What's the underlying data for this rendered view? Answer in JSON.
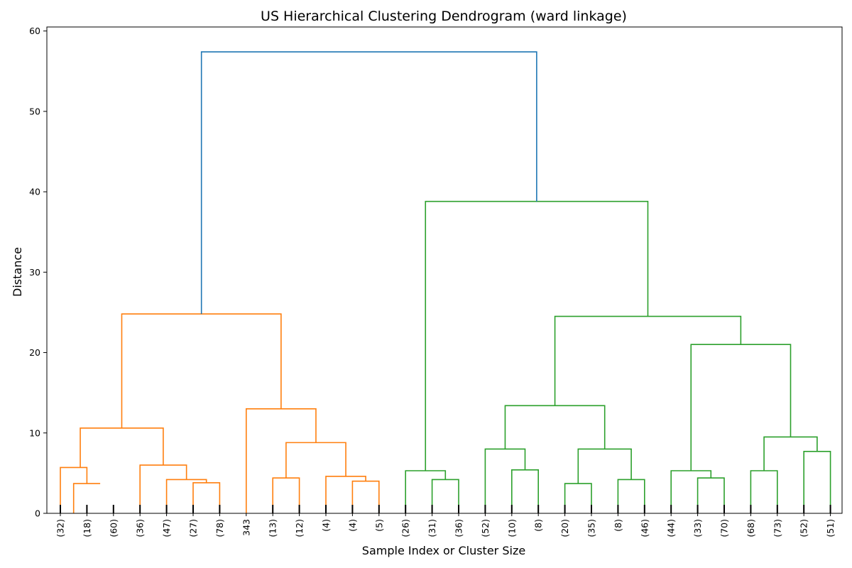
{
  "chart_data": {
    "type": "dendrogram",
    "title": "US Hierarchical Clustering Dendrogram (ward linkage)",
    "xlabel": "Sample Index or Cluster Size",
    "ylabel": "Distance",
    "ylim": [
      0,
      60.5
    ],
    "yticks": [
      0,
      10,
      20,
      30,
      40,
      50,
      60
    ],
    "grid": false,
    "colors": {
      "root": "#1f77b4",
      "cluster_a": "#ff7f0e",
      "cluster_b": "#2ca02c",
      "axis": "#000000"
    },
    "leaves": [
      "(32)",
      "(18)",
      "(60)",
      "(36)",
      "(47)",
      "(27)",
      "(78)",
      "343",
      "(13)",
      "(12)",
      "(4)",
      "(4)",
      "(5)",
      "(26)",
      "(31)",
      "(36)",
      "(52)",
      "(10)",
      "(8)",
      "(20)",
      "(35)",
      "(8)",
      "(46)",
      "(44)",
      "(33)",
      "(70)",
      "(68)",
      "(73)",
      "(52)",
      "(51)"
    ],
    "links": [
      {
        "left": [
          0.5,
          0
        ],
        "right": [
          1.5,
          3.7
        ],
        "height": 3.7,
        "color": "cluster_a"
      },
      {
        "left": [
          0,
          0
        ],
        "right": [
          1,
          3.7
        ],
        "height": 5.7,
        "color": "cluster_a"
      },
      {
        "left": [
          5,
          0
        ],
        "right": [
          6,
          0
        ],
        "height": 3.8,
        "color": "cluster_a"
      },
      {
        "left": [
          4,
          0
        ],
        "right": [
          5.5,
          3.8
        ],
        "height": 4.2,
        "color": "cluster_a"
      },
      {
        "left": [
          3,
          0
        ],
        "right": [
          4.75,
          4.2
        ],
        "height": 6.0,
        "color": "cluster_a"
      },
      {
        "left": [
          0.75,
          5.7
        ],
        "right": [
          3.875,
          6.0
        ],
        "height": 10.6,
        "color": "cluster_a"
      },
      {
        "left": [
          8,
          0
        ],
        "right": [
          9,
          0
        ],
        "height": 4.4,
        "color": "cluster_a"
      },
      {
        "left": [
          11,
          0
        ],
        "right": [
          12,
          0
        ],
        "height": 4.0,
        "color": "cluster_a"
      },
      {
        "left": [
          10,
          0
        ],
        "right": [
          11.5,
          4.0
        ],
        "height": 4.6,
        "color": "cluster_a"
      },
      {
        "left": [
          8.5,
          4.4
        ],
        "right": [
          10.75,
          4.6
        ],
        "height": 8.8,
        "color": "cluster_a"
      },
      {
        "left": [
          7,
          0
        ],
        "right": [
          9.625,
          8.8
        ],
        "height": 13.0,
        "color": "cluster_a"
      },
      {
        "left": [
          2.3125,
          10.6
        ],
        "right": [
          8.3125,
          13.0
        ],
        "height": 24.8,
        "color": "cluster_a"
      },
      {
        "left": [
          14,
          0
        ],
        "right": [
          15,
          0
        ],
        "height": 4.2,
        "color": "cluster_b"
      },
      {
        "left": [
          13,
          0
        ],
        "right": [
          14.5,
          4.2
        ],
        "height": 5.3,
        "color": "cluster_b"
      },
      {
        "left": [
          17,
          0
        ],
        "right": [
          18,
          0
        ],
        "height": 5.4,
        "color": "cluster_b"
      },
      {
        "left": [
          16,
          0
        ],
        "right": [
          17.5,
          5.4
        ],
        "height": 8.0,
        "color": "cluster_b"
      },
      {
        "left": [
          19,
          0
        ],
        "right": [
          20,
          0
        ],
        "height": 3.7,
        "color": "cluster_b"
      },
      {
        "left": [
          21,
          0
        ],
        "right": [
          22,
          0
        ],
        "height": 4.2,
        "color": "cluster_b"
      },
      {
        "left": [
          19.5,
          3.7
        ],
        "right": [
          21.5,
          4.2
        ],
        "height": 8.0,
        "color": "cluster_b"
      },
      {
        "left": [
          16.75,
          8.0
        ],
        "right": [
          20.5,
          8.0
        ],
        "height": 13.4,
        "color": "cluster_b"
      },
      {
        "left": [
          24,
          0
        ],
        "right": [
          25,
          0
        ],
        "height": 4.4,
        "color": "cluster_b"
      },
      {
        "left": [
          23,
          0
        ],
        "right": [
          24.5,
          4.4
        ],
        "height": 5.3,
        "color": "cluster_b"
      },
      {
        "left": [
          26,
          0
        ],
        "right": [
          27,
          0
        ],
        "height": 5.3,
        "color": "cluster_b"
      },
      {
        "left": [
          28,
          0
        ],
        "right": [
          29,
          0
        ],
        "height": 7.7,
        "color": "cluster_b"
      },
      {
        "left": [
          26.5,
          5.3
        ],
        "right": [
          28.5,
          7.7
        ],
        "height": 9.5,
        "color": "cluster_b"
      },
      {
        "left": [
          23.75,
          5.3
        ],
        "right": [
          27.5,
          9.5
        ],
        "height": 21.0,
        "color": "cluster_b"
      },
      {
        "left": [
          18.625,
          13.4
        ],
        "right": [
          25.625,
          21.0
        ],
        "height": 24.5,
        "color": "cluster_b"
      },
      {
        "left": [
          13.75,
          5.3
        ],
        "right": [
          22.125,
          24.5
        ],
        "height": 38.8,
        "color": "cluster_b"
      },
      {
        "left": [
          5.3125,
          24.8
        ],
        "right": [
          17.9375,
          38.8
        ],
        "height": 57.4,
        "color": "root"
      }
    ]
  }
}
